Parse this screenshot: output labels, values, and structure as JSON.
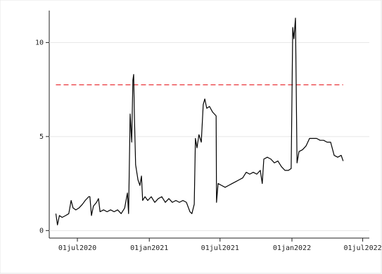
{
  "chart_data": {
    "type": "line",
    "x": [
      "2020-05-07",
      "2020-05-11",
      "2020-05-16",
      "2020-05-23",
      "2020-06-01",
      "2020-06-09",
      "2020-06-15",
      "2020-06-20",
      "2020-06-27",
      "2020-07-05",
      "2020-07-14",
      "2020-07-21",
      "2020-07-30",
      "2020-08-02",
      "2020-08-06",
      "2020-08-11",
      "2020-08-19",
      "2020-08-24",
      "2020-08-28",
      "2020-09-06",
      "2020-09-15",
      "2020-09-24",
      "2020-10-03",
      "2020-10-12",
      "2020-10-21",
      "2020-10-30",
      "2020-11-06",
      "2020-11-09",
      "2020-11-13",
      "2020-11-17",
      "2020-11-20",
      "2020-11-22",
      "2020-11-24",
      "2020-11-27",
      "2020-12-03",
      "2020-12-08",
      "2020-12-12",
      "2020-12-15",
      "2020-12-21",
      "2020-12-28",
      "2021-01-06",
      "2021-01-15",
      "2021-01-24",
      "2021-02-02",
      "2021-02-11",
      "2021-02-20",
      "2021-03-01",
      "2021-03-10",
      "2021-03-19",
      "2021-03-28",
      "2021-04-06",
      "2021-04-15",
      "2021-04-20",
      "2021-04-26",
      "2021-04-29",
      "2021-05-03",
      "2021-05-08",
      "2021-05-14",
      "2021-05-19",
      "2021-05-23",
      "2021-05-28",
      "2021-06-04",
      "2021-06-12",
      "2021-06-21",
      "2021-06-22",
      "2021-06-26",
      "2021-07-05",
      "2021-07-14",
      "2021-07-23",
      "2021-08-01",
      "2021-08-10",
      "2021-08-19",
      "2021-08-28",
      "2021-09-06",
      "2021-09-15",
      "2021-09-24",
      "2021-10-03",
      "2021-10-12",
      "2021-10-17",
      "2021-10-21",
      "2021-10-30",
      "2021-11-08",
      "2021-11-17",
      "2021-11-26",
      "2021-12-05",
      "2021-12-14",
      "2021-12-23",
      "2021-12-30",
      "2022-01-03",
      "2022-01-06",
      "2022-01-10",
      "2022-01-14",
      "2022-01-19",
      "2022-01-28",
      "2022-02-06",
      "2022-02-15",
      "2022-02-24",
      "2022-03-05",
      "2022-03-14",
      "2022-03-23",
      "2022-04-01",
      "2022-04-10",
      "2022-04-19",
      "2022-04-28",
      "2022-05-07",
      "2022-05-12"
    ],
    "series": [
      {
        "color": "#000000",
        "values": [
          0.9,
          0.3,
          0.8,
          0.7,
          0.8,
          0.9,
          1.6,
          1.2,
          1.1,
          1.2,
          1.4,
          1.6,
          1.8,
          1.8,
          0.8,
          1.3,
          1.5,
          1.7,
          1.0,
          1.1,
          1.0,
          1.1,
          1.0,
          1.1,
          0.9,
          1.2,
          2.0,
          0.9,
          6.2,
          4.7,
          8.0,
          8.3,
          6.0,
          3.5,
          2.7,
          2.4,
          2.9,
          1.6,
          1.8,
          1.6,
          1.8,
          1.5,
          1.7,
          1.8,
          1.5,
          1.7,
          1.5,
          1.6,
          1.5,
          1.6,
          1.5,
          1.0,
          0.9,
          1.4,
          4.9,
          4.4,
          5.1,
          4.7,
          6.7,
          7.0,
          6.5,
          6.6,
          6.3,
          6.1,
          1.5,
          2.5,
          2.4,
          2.3,
          2.4,
          2.5,
          2.6,
          2.7,
          2.8,
          3.1,
          3.0,
          3.1,
          3.0,
          3.2,
          2.5,
          3.8,
          3.9,
          3.8,
          3.6,
          3.7,
          3.4,
          3.2,
          3.2,
          3.3,
          10.8,
          10.2,
          11.3,
          3.6,
          4.2,
          4.3,
          4.5,
          4.9,
          4.9,
          4.9,
          4.8,
          4.8,
          4.7,
          4.7,
          4.0,
          3.9,
          4.0,
          3.7
        ]
      }
    ],
    "reference_line": {
      "value": 7.75,
      "color": "#e8242b"
    },
    "xlim": [
      "2020-04-20",
      "2022-07-18"
    ],
    "xticks": [
      {
        "value": "2020-07-01",
        "label": "01jul2020"
      },
      {
        "value": "2021-01-01",
        "label": "01jan2021"
      },
      {
        "value": "2021-07-01",
        "label": "01jul2021"
      },
      {
        "value": "2022-01-01",
        "label": "01jan2022"
      },
      {
        "value": "2022-07-01",
        "label": "01jul2022"
      }
    ],
    "ylim": [
      -0.4,
      11.7
    ],
    "yticks": [
      0,
      5,
      10
    ],
    "grid": true
  }
}
